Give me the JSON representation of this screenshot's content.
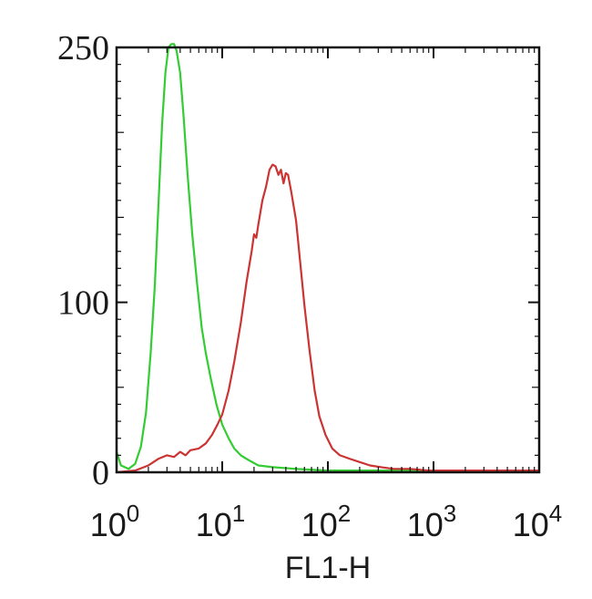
{
  "chart_data": {
    "type": "line",
    "title": "",
    "xlabel": "FL1-H",
    "ylabel": "",
    "x_scale": "log",
    "xlim": [
      1,
      10000
    ],
    "ylim": [
      0,
      250
    ],
    "grid": false,
    "legend": "none",
    "y_ticks": [
      {
        "value": 0,
        "label": "0"
      },
      {
        "value": 100,
        "label": "100"
      },
      {
        "value": 250,
        "label": "250"
      }
    ],
    "x_ticks": [
      {
        "value": 1,
        "base": "10",
        "exp": "0"
      },
      {
        "value": 10,
        "base": "10",
        "exp": "1"
      },
      {
        "value": 100,
        "base": "10",
        "exp": "2"
      },
      {
        "value": 1000,
        "base": "10",
        "exp": "3"
      },
      {
        "value": 10000,
        "base": "10",
        "exp": "4"
      }
    ],
    "series": [
      {
        "color": "#33cc33",
        "points": [
          [
            1.0,
            12
          ],
          [
            1.1,
            4
          ],
          [
            1.3,
            2
          ],
          [
            1.5,
            5
          ],
          [
            1.7,
            15
          ],
          [
            1.9,
            35
          ],
          [
            2.1,
            70
          ],
          [
            2.3,
            110
          ],
          [
            2.5,
            160
          ],
          [
            2.7,
            205
          ],
          [
            2.9,
            235
          ],
          [
            3.1,
            250
          ],
          [
            3.3,
            252
          ],
          [
            3.5,
            252
          ],
          [
            3.7,
            248
          ],
          [
            4.0,
            235
          ],
          [
            4.3,
            210
          ],
          [
            4.7,
            175
          ],
          [
            5.2,
            140
          ],
          [
            5.8,
            110
          ],
          [
            6.4,
            85
          ],
          [
            7.0,
            70
          ],
          [
            7.8,
            55
          ],
          [
            8.8,
            40
          ],
          [
            10,
            28
          ],
          [
            11.5,
            20
          ],
          [
            13,
            14
          ],
          [
            15,
            10
          ],
          [
            18,
            7
          ],
          [
            22,
            4
          ],
          [
            30,
            3
          ],
          [
            50,
            2
          ],
          [
            100,
            1
          ],
          [
            300,
            1
          ],
          [
            1000,
            1
          ],
          [
            3000,
            1
          ],
          [
            10000,
            1
          ]
        ]
      },
      {
        "color": "#cc3333",
        "points": [
          [
            1.0,
            0
          ],
          [
            1.5,
            1
          ],
          [
            2.0,
            4
          ],
          [
            2.5,
            8
          ],
          [
            3.0,
            10
          ],
          [
            3.5,
            9
          ],
          [
            4.0,
            12
          ],
          [
            4.5,
            10
          ],
          [
            5.0,
            13
          ],
          [
            6.0,
            14
          ],
          [
            7.0,
            17
          ],
          [
            8.0,
            22
          ],
          [
            9.0,
            28
          ],
          [
            10,
            34
          ],
          [
            11.5,
            48
          ],
          [
            13,
            65
          ],
          [
            15,
            88
          ],
          [
            17,
            112
          ],
          [
            19,
            130
          ],
          [
            20,
            140
          ],
          [
            21,
            138
          ],
          [
            22,
            146
          ],
          [
            24,
            160
          ],
          [
            26,
            168
          ],
          [
            28,
            178
          ],
          [
            30,
            181
          ],
          [
            32,
            180
          ],
          [
            34,
            175
          ],
          [
            36,
            178
          ],
          [
            38,
            170
          ],
          [
            40,
            176
          ],
          [
            42,
            175
          ],
          [
            45,
            165
          ],
          [
            50,
            148
          ],
          [
            55,
            122
          ],
          [
            60,
            98
          ],
          [
            67,
            72
          ],
          [
            75,
            48
          ],
          [
            83,
            33
          ],
          [
            95,
            22
          ],
          [
            110,
            14
          ],
          [
            130,
            10
          ],
          [
            160,
            8
          ],
          [
            200,
            6
          ],
          [
            250,
            4
          ],
          [
            320,
            3
          ],
          [
            420,
            2
          ],
          [
            600,
            2
          ],
          [
            900,
            1
          ],
          [
            1500,
            1
          ],
          [
            3000,
            1
          ],
          [
            6000,
            1
          ],
          [
            10000,
            1
          ]
        ]
      }
    ]
  }
}
